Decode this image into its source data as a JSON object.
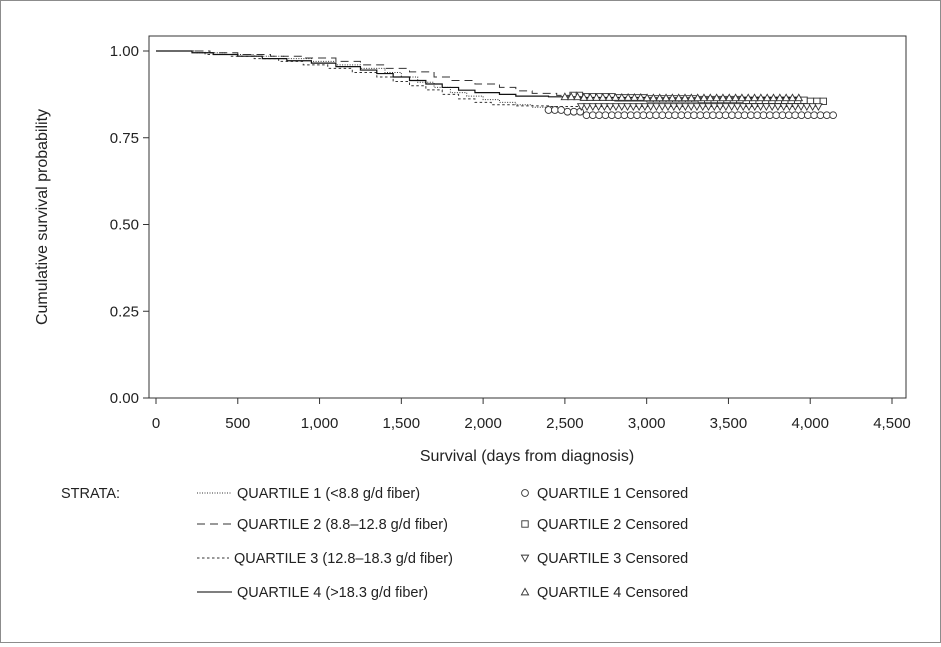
{
  "chart_data": {
    "type": "line",
    "subtype": "kaplan-meier survival curve",
    "xlabel": "Survival (days from diagnosis)",
    "ylabel": "Cumulative survival probability",
    "xlim": [
      0,
      4500
    ],
    "ylim": [
      0,
      1
    ],
    "x_ticks": [
      "0",
      "500",
      "1,000",
      "1,500",
      "2,000",
      "2,500",
      "3,000",
      "3,500",
      "4,000",
      "4,500"
    ],
    "y_ticks": [
      "0.00",
      "0.25",
      "0.50",
      "0.75",
      "1.00"
    ],
    "grid": false,
    "legend": {
      "title": "STRATA:",
      "placement": "bottom",
      "line_entries": [
        "QUARTILE 1 (<8.8 g/d fiber)",
        "QUARTILE 2 (8.8–12.8 g/d fiber)",
        "QUARTILE 3 (12.8–18.3 g/d fiber)",
        "QUARTILE 4 (>18.3 g/d fiber)"
      ],
      "censor_entries": [
        "QUARTILE 1 Censored",
        "QUARTILE 2 Censored",
        "QUARTILE 3 Censored",
        "QUARTILE 4 Censored"
      ],
      "censor_symbols": [
        "○",
        "□",
        "▽",
        "△"
      ]
    },
    "series": [
      {
        "name": "QUARTILE 1 (<8.8 g/d fiber)",
        "dash": "1,1.5",
        "censor_marker": "circle",
        "points": [
          [
            0,
            1.0
          ],
          [
            150,
            1.0
          ],
          [
            250,
            0.995
          ],
          [
            420,
            0.99
          ],
          [
            600,
            0.985
          ],
          [
            780,
            0.978
          ],
          [
            950,
            0.97
          ],
          [
            1100,
            0.96
          ],
          [
            1250,
            0.95
          ],
          [
            1400,
            0.938
          ],
          [
            1500,
            0.925
          ],
          [
            1600,
            0.91
          ],
          [
            1700,
            0.895
          ],
          [
            1800,
            0.88
          ],
          [
            1900,
            0.87
          ],
          [
            2000,
            0.86
          ],
          [
            2100,
            0.852
          ],
          [
            2200,
            0.845
          ],
          [
            2300,
            0.838
          ],
          [
            2380,
            0.83
          ],
          [
            2480,
            0.825
          ],
          [
            2620,
            0.815
          ],
          [
            4150,
            0.815
          ]
        ],
        "censored_x_range": [
          2400,
          4140
        ],
        "censored_count": 46
      },
      {
        "name": "QUARTILE 2 (8.8–12.8 g/d fiber)",
        "dash": "8,5",
        "censor_marker": "square",
        "points": [
          [
            0,
            1.0
          ],
          [
            200,
            1.0
          ],
          [
            330,
            0.995
          ],
          [
            500,
            0.99
          ],
          [
            700,
            0.985
          ],
          [
            900,
            0.98
          ],
          [
            1100,
            0.97
          ],
          [
            1250,
            0.96
          ],
          [
            1400,
            0.95
          ],
          [
            1550,
            0.94
          ],
          [
            1700,
            0.925
          ],
          [
            1800,
            0.915
          ],
          [
            1950,
            0.905
          ],
          [
            2100,
            0.895
          ],
          [
            2200,
            0.885
          ],
          [
            2300,
            0.878
          ],
          [
            2450,
            0.872
          ],
          [
            2600,
            0.868
          ],
          [
            2800,
            0.865
          ],
          [
            3000,
            0.862
          ],
          [
            3300,
            0.86
          ],
          [
            3600,
            0.858
          ],
          [
            4000,
            0.855
          ],
          [
            4080,
            0.855
          ]
        ],
        "censored_x_range": [
          2550,
          4080
        ],
        "censored_count": 40
      },
      {
        "name": "QUARTILE 3 (12.8–18.3 g/d fiber)",
        "dash": "2.5,2.5",
        "censor_marker": "triangle-down",
        "points": [
          [
            0,
            1.0
          ],
          [
            180,
            1.0
          ],
          [
            300,
            0.99
          ],
          [
            450,
            0.985
          ],
          [
            600,
            0.978
          ],
          [
            750,
            0.97
          ],
          [
            900,
            0.96
          ],
          [
            1050,
            0.95
          ],
          [
            1200,
            0.938
          ],
          [
            1350,
            0.925
          ],
          [
            1450,
            0.912
          ],
          [
            1550,
            0.9
          ],
          [
            1650,
            0.888
          ],
          [
            1750,
            0.875
          ],
          [
            1850,
            0.862
          ],
          [
            1950,
            0.852
          ],
          [
            2050,
            0.845
          ],
          [
            2200,
            0.842
          ],
          [
            2400,
            0.84
          ],
          [
            2700,
            0.84
          ],
          [
            4050,
            0.84
          ]
        ],
        "censored_x_range": [
          2600,
          4050
        ],
        "censored_count": 42
      },
      {
        "name": "QUARTILE 4 (>18.3 g/d fiber)",
        "dash": "",
        "censor_marker": "triangle-up",
        "points": [
          [
            0,
            1.0
          ],
          [
            100,
            1.0
          ],
          [
            220,
            0.995
          ],
          [
            350,
            0.99
          ],
          [
            500,
            0.985
          ],
          [
            650,
            0.978
          ],
          [
            800,
            0.972
          ],
          [
            950,
            0.965
          ],
          [
            1100,
            0.955
          ],
          [
            1250,
            0.945
          ],
          [
            1350,
            0.935
          ],
          [
            1450,
            0.925
          ],
          [
            1550,
            0.915
          ],
          [
            1650,
            0.905
          ],
          [
            1750,
            0.895
          ],
          [
            1850,
            0.887
          ],
          [
            1950,
            0.88
          ],
          [
            2100,
            0.875
          ],
          [
            2200,
            0.87
          ],
          [
            2400,
            0.868
          ],
          [
            2600,
            0.866
          ],
          [
            3000,
            0.865
          ],
          [
            3500,
            0.865
          ],
          [
            3930,
            0.865
          ]
        ],
        "censored_x_range": [
          2500,
          3930
        ],
        "censored_count": 38
      }
    ]
  }
}
